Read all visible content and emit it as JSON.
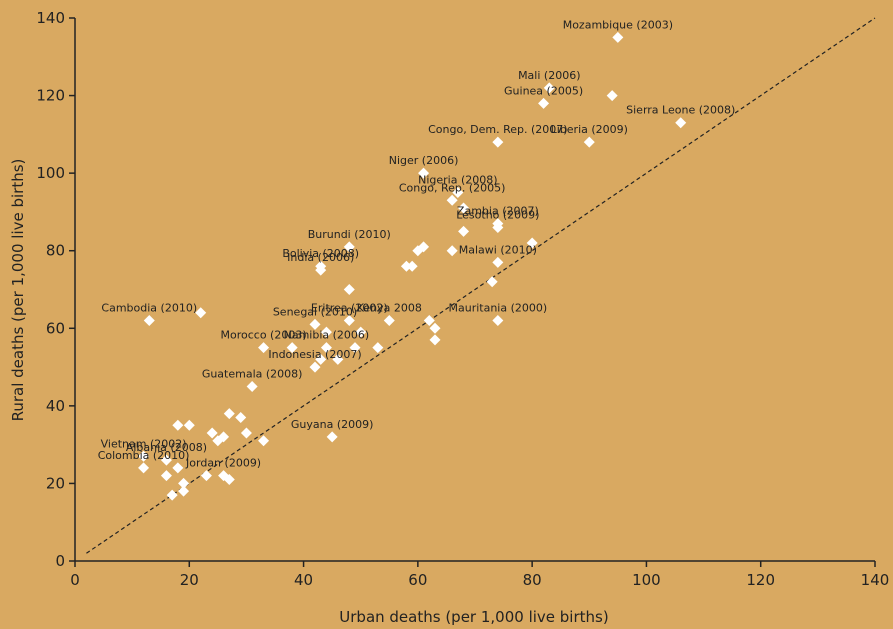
{
  "chart_data": {
    "type": "scatter",
    "title": "",
    "xlabel": "Urban deaths (per 1,000 live births)",
    "ylabel": "Rural deaths (per 1,000 live births)",
    "xlim": [
      0,
      140
    ],
    "ylim": [
      0,
      140
    ],
    "xticks": [
      0,
      20,
      40,
      60,
      80,
      100,
      120,
      140
    ],
    "yticks": [
      0,
      20,
      40,
      60,
      80,
      100,
      120,
      140
    ],
    "grid": false,
    "reference_line": "y = x (dashed)",
    "colors": {
      "background": "#d9a961",
      "marker": "#ffffff",
      "axis": "#222222"
    },
    "points": [
      {
        "x": 95,
        "y": 135,
        "label": "Mozambique (2003)"
      },
      {
        "x": 83,
        "y": 122,
        "label": "Mali (2006)"
      },
      {
        "x": 82,
        "y": 118,
        "label": "Guinea (2005)"
      },
      {
        "x": 94,
        "y": 120,
        "label": ""
      },
      {
        "x": 106,
        "y": 113,
        "label": "Sierra Leone (2008)"
      },
      {
        "x": 74,
        "y": 108,
        "label": "Congo, Dem. Rep. (2007)"
      },
      {
        "x": 90,
        "y": 108,
        "label": "Liberia (2009)"
      },
      {
        "x": 61,
        "y": 100,
        "label": "Niger (2006)"
      },
      {
        "x": 67,
        "y": 95,
        "label": "Nigeria (2008)"
      },
      {
        "x": 66,
        "y": 93,
        "label": "Congo, Rep. (2005)"
      },
      {
        "x": 68,
        "y": 91,
        "label": ""
      },
      {
        "x": 74,
        "y": 86,
        "label": "Lesotho (2009)"
      },
      {
        "x": 74,
        "y": 87,
        "label": "Zambia (2007)"
      },
      {
        "x": 68,
        "y": 85,
        "label": ""
      },
      {
        "x": 80,
        "y": 82,
        "label": ""
      },
      {
        "x": 48,
        "y": 81,
        "label": "Burundi (2010)"
      },
      {
        "x": 60,
        "y": 80,
        "label": ""
      },
      {
        "x": 61,
        "y": 81,
        "label": ""
      },
      {
        "x": 66,
        "y": 80,
        "label": ""
      },
      {
        "x": 43,
        "y": 76,
        "label": "Bolivia (2008)"
      },
      {
        "x": 43,
        "y": 75,
        "label": "India (2006)"
      },
      {
        "x": 58,
        "y": 76,
        "label": ""
      },
      {
        "x": 59,
        "y": 76,
        "label": ""
      },
      {
        "x": 74,
        "y": 77,
        "label": "Malawi (2010)"
      },
      {
        "x": 73,
        "y": 72,
        "label": ""
      },
      {
        "x": 48,
        "y": 70,
        "label": ""
      },
      {
        "x": 13,
        "y": 62,
        "label": "Cambodia (2010)"
      },
      {
        "x": 22,
        "y": 64,
        "label": ""
      },
      {
        "x": 48,
        "y": 62,
        "label": "Eritrea (2002)"
      },
      {
        "x": 42,
        "y": 61,
        "label": "Senegal (2010)"
      },
      {
        "x": 55,
        "y": 62,
        "label": "Kenya 2008"
      },
      {
        "x": 62,
        "y": 62,
        "label": ""
      },
      {
        "x": 74,
        "y": 62,
        "label": "Mauritania (2000)"
      },
      {
        "x": 63,
        "y": 60,
        "label": ""
      },
      {
        "x": 63,
        "y": 57,
        "label": ""
      },
      {
        "x": 44,
        "y": 59,
        "label": ""
      },
      {
        "x": 50,
        "y": 59,
        "label": ""
      },
      {
        "x": 33,
        "y": 55,
        "label": "Morocco (2003)"
      },
      {
        "x": 38,
        "y": 55,
        "label": ""
      },
      {
        "x": 44,
        "y": 55,
        "label": "Namibia (2006)"
      },
      {
        "x": 49,
        "y": 55,
        "label": ""
      },
      {
        "x": 53,
        "y": 55,
        "label": ""
      },
      {
        "x": 43,
        "y": 52,
        "label": ""
      },
      {
        "x": 46,
        "y": 52,
        "label": ""
      },
      {
        "x": 42,
        "y": 50,
        "label": "Indonesia (2007)"
      },
      {
        "x": 31,
        "y": 45,
        "label": "Guatemala (2008)"
      },
      {
        "x": 27,
        "y": 38,
        "label": ""
      },
      {
        "x": 29,
        "y": 37,
        "label": ""
      },
      {
        "x": 18,
        "y": 35,
        "label": ""
      },
      {
        "x": 20,
        "y": 35,
        "label": ""
      },
      {
        "x": 45,
        "y": 32,
        "label": "Guyana (2009)"
      },
      {
        "x": 24,
        "y": 33,
        "label": ""
      },
      {
        "x": 30,
        "y": 33,
        "label": ""
      },
      {
        "x": 25,
        "y": 31,
        "label": ""
      },
      {
        "x": 26,
        "y": 32,
        "label": ""
      },
      {
        "x": 33,
        "y": 31,
        "label": ""
      },
      {
        "x": 12,
        "y": 27,
        "label": "Vietnam (2002)"
      },
      {
        "x": 16,
        "y": 26,
        "label": "Albania (2008)"
      },
      {
        "x": 18,
        "y": 24,
        "label": ""
      },
      {
        "x": 16,
        "y": 22,
        "label": ""
      },
      {
        "x": 12,
        "y": 24,
        "label": "Colombia (2010)"
      },
      {
        "x": 23,
        "y": 22,
        "label": ""
      },
      {
        "x": 26,
        "y": 22,
        "label": "Jordan (2009)"
      },
      {
        "x": 27,
        "y": 21,
        "label": ""
      },
      {
        "x": 19,
        "y": 20,
        "label": ""
      },
      {
        "x": 19,
        "y": 18,
        "label": ""
      },
      {
        "x": 17,
        "y": 17,
        "label": ""
      }
    ]
  }
}
